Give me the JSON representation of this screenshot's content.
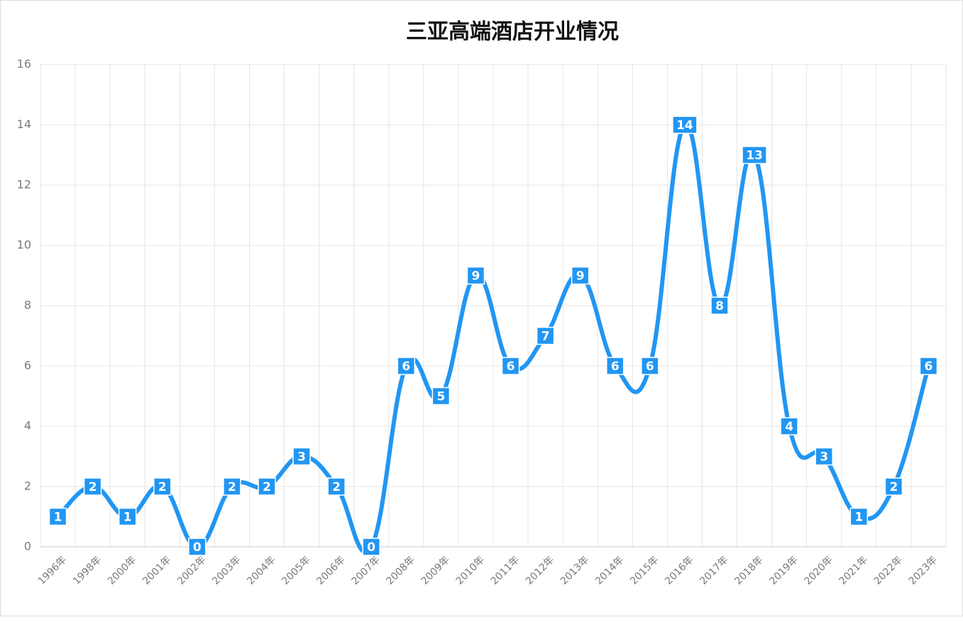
{
  "chart_data": {
    "type": "line",
    "title": "三亚高端酒店开业情况",
    "categories": [
      "1996年",
      "1998年",
      "2000年",
      "2001年",
      "2002年",
      "2003年",
      "2004年",
      "2005年",
      "2006年",
      "2007年",
      "2008年",
      "2009年",
      "2010年",
      "2011年",
      "2012年",
      "2013年",
      "2014年",
      "2015年",
      "2016年",
      "2017年",
      "2018年",
      "2019年",
      "2020年",
      "2021年",
      "2022年",
      "2023年"
    ],
    "values": [
      1,
      2,
      1,
      2,
      0,
      2,
      2,
      3,
      2,
      0,
      6,
      5,
      9,
      6,
      7,
      9,
      6,
      6,
      14,
      8,
      13,
      4,
      3,
      1,
      2,
      6
    ],
    "color": "#2196f3",
    "smooth": true,
    "grid": true,
    "ylim": [
      0,
      16
    ],
    "yticks": [
      0,
      2,
      4,
      6,
      8,
      10,
      12,
      14,
      16
    ]
  }
}
